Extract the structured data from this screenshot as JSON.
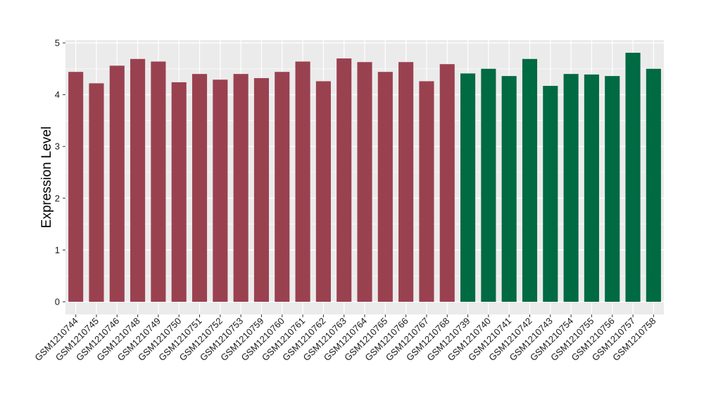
{
  "chart_data": {
    "type": "bar",
    "title": "",
    "xlabel": "",
    "ylabel": "Expression Level",
    "ylim": [
      0,
      5
    ],
    "yticks": [
      0,
      1,
      2,
      3,
      4,
      5
    ],
    "grid": true,
    "legend": "none",
    "categories": [
      "GSM1210744",
      "GSM1210745",
      "GSM1210746",
      "GSM1210748",
      "GSM1210749",
      "GSM1210750",
      "GSM1210751",
      "GSM1210752",
      "GSM1210753",
      "GSM1210759",
      "GSM1210760",
      "GSM1210761",
      "GSM1210762",
      "GSM1210763",
      "GSM1210764",
      "GSM1210765",
      "GSM1210766",
      "GSM1210767",
      "GSM1210768",
      "GSM1210739",
      "GSM1210740",
      "GSM1210741",
      "GSM1210742",
      "GSM1210743",
      "GSM1210754",
      "GSM1210755",
      "GSM1210756",
      "GSM1210757",
      "GSM1210758"
    ],
    "values": [
      4.44,
      4.22,
      4.56,
      4.69,
      4.64,
      4.24,
      4.4,
      4.29,
      4.4,
      4.32,
      4.44,
      4.64,
      4.26,
      4.7,
      4.63,
      4.44,
      4.63,
      4.26,
      4.59,
      4.41,
      4.5,
      4.36,
      4.69,
      4.17,
      4.4,
      4.39,
      4.36,
      4.81,
      4.5
    ],
    "groups": [
      {
        "color": "#9a4150",
        "count": 19
      },
      {
        "color": "#006a43",
        "count": 10
      }
    ],
    "colors": {
      "panel_background": "#ebebeb",
      "grid": "#ffffff"
    }
  }
}
